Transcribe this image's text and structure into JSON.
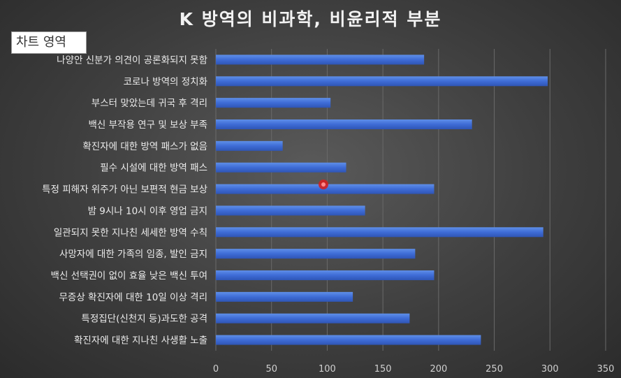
{
  "chart_data": {
    "type": "bar",
    "orientation": "horizontal",
    "title": "K 방역의 비과학, 비윤리적 부분",
    "categories": [
      "나양안 신분가 의견이 공론화되지 못함",
      "코로나 방역의 정치화",
      "부스터 맞았는데 귀국 후 격리",
      "백신 부작용 연구 및 보상 부족",
      "확진자에 대한 방역 패스가 없음",
      "필수 시설에 대한 방역 패스",
      "특정 피해자 위주가 아닌 보편적 현금 보상",
      "밤 9시나 10시 이후 영업 금지",
      "일관되지 못한 지나친 세세한 방역 수칙",
      "사망자에 대한 가족의 임종, 발인 금지",
      "백신 선택권이 없이 효율 낮은 백신 투여",
      "무증상 확진자에 대한 10일 이상 격리",
      "특정집단(신천지 등)과도한 공격",
      "확진자에 대한 지나친 사생활 노출"
    ],
    "values": [
      187,
      298,
      103,
      230,
      60,
      117,
      196,
      134,
      294,
      179,
      196,
      123,
      174,
      238
    ],
    "xlim": [
      0,
      350
    ],
    "xticks": [
      0,
      50,
      100,
      150,
      200,
      250,
      300,
      350
    ],
    "grid": true,
    "bar_color": "#4472c4"
  },
  "tooltip": {
    "text": "차트 영역"
  },
  "cursor_icon": "red-dot-cursor-icon"
}
